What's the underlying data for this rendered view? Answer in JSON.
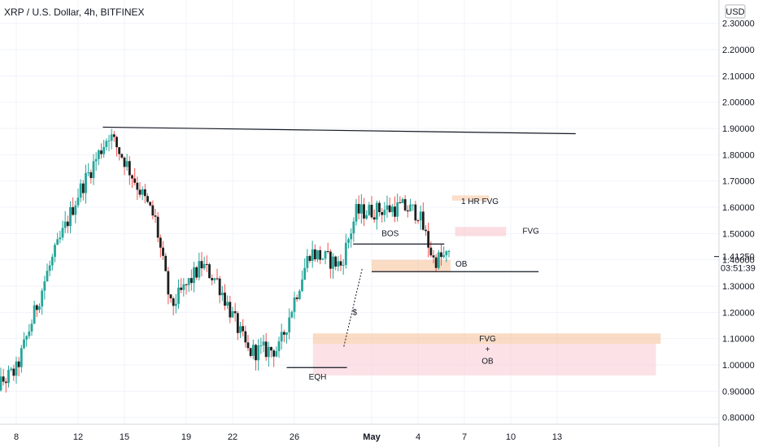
{
  "header": {
    "title": "XRP / U.S. Dollar, 4h, BITFINEX"
  },
  "currency_button": {
    "label": "USD"
  },
  "last_price": {
    "value": "1.41250",
    "countdown": "03:51:39"
  },
  "colors": {
    "up": "#26a69a",
    "down": "#ef5350",
    "body_dark": "#1f1f1f",
    "grid": "#f0f3fa",
    "fvg_orange": "#f7c39c",
    "fvg_pink": "#f9c6cf"
  },
  "chart_data": {
    "type": "candlestick",
    "title": "XRP / U.S. Dollar, 4h, BITFINEX",
    "y_axis": {
      "scale": "linear",
      "range": [
        0.77,
        2.33
      ],
      "ticks": [
        0.8,
        0.9,
        1.0,
        1.1,
        1.2,
        1.3,
        1.4,
        1.5,
        1.6,
        1.7,
        1.8,
        1.9,
        2.0,
        2.1,
        2.2,
        2.3
      ],
      "tick_labels": [
        "0.80000",
        "0.90000",
        "1.00000",
        "1.10000",
        "1.20000",
        "1.30000",
        "1.40000",
        "1.50000",
        "1.60000",
        "1.70000",
        "1.80000",
        "1.90000",
        "2.00000",
        "2.10000",
        "2.20000",
        "2.30000"
      ]
    },
    "x_axis": {
      "tick_labels": [
        "8",
        "12",
        "15",
        "19",
        "22",
        "26",
        "May",
        "4",
        "7",
        "10",
        "13"
      ]
    },
    "key_closes": [
      {
        "x": "6 Apr",
        "close": 0.88
      },
      {
        "x": "8 Apr",
        "close": 0.98
      },
      {
        "x": "10 Apr",
        "close": 1.35
      },
      {
        "x": "12 Apr",
        "close": 1.65
      },
      {
        "x": "14 Apr",
        "close": 1.88
      },
      {
        "x": "15 Apr",
        "close": 1.78
      },
      {
        "x": "17 Apr",
        "close": 1.55
      },
      {
        "x": "18 Apr",
        "close": 1.22
      },
      {
        "x": "20 Apr",
        "close": 1.38
      },
      {
        "x": "21 Apr",
        "close": 1.32
      },
      {
        "x": "23 Apr",
        "close": 1.05
      },
      {
        "x": "25 Apr",
        "close": 1.06
      },
      {
        "x": "26 Apr",
        "close": 1.25
      },
      {
        "x": "27 Apr",
        "close": 1.43
      },
      {
        "x": "29 Apr",
        "close": 1.38
      },
      {
        "x": "30 Apr",
        "close": 1.58
      },
      {
        "x": "2 May",
        "close": 1.6
      },
      {
        "x": "3 May",
        "close": 1.58
      },
      {
        "x": "4 May",
        "close": 1.4
      },
      {
        "x": "5 May",
        "close": 1.4125
      }
    ],
    "annotations": [
      {
        "label": "1 HR FVG",
        "kind": "zone",
        "range": [
          1.625,
          1.645
        ]
      },
      {
        "label": "FVG",
        "kind": "zone",
        "range": [
          1.49,
          1.525
        ]
      },
      {
        "label": "OB",
        "kind": "zone",
        "range": [
          1.355,
          1.4
        ]
      },
      {
        "label": "FVG",
        "kind": "zone",
        "range": [
          1.08,
          1.12
        ]
      },
      {
        "label": "+",
        "kind": "text"
      },
      {
        "label": "OB",
        "kind": "zone",
        "range": [
          0.96,
          1.08
        ]
      },
      {
        "label": "BOS",
        "kind": "line",
        "value": 1.46
      },
      {
        "label": "EQH",
        "kind": "line",
        "value": 0.99
      },
      {
        "label": "$",
        "kind": "text"
      },
      {
        "label": "",
        "kind": "line",
        "value": 1.9
      }
    ]
  }
}
